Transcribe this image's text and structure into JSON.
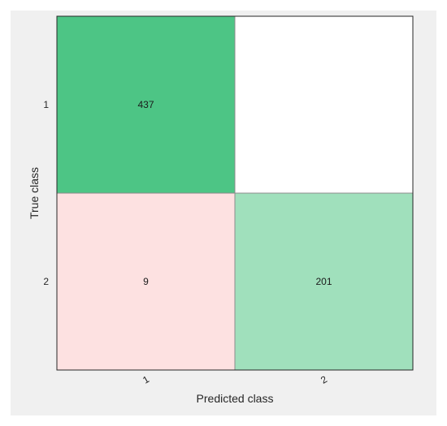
{
  "chart_data": {
    "type": "heatmap",
    "subtype": "confusion-matrix",
    "xlabel": "Predicted class",
    "ylabel": "True class",
    "x_categories": [
      "1",
      "2"
    ],
    "y_categories": [
      "1",
      "2"
    ],
    "cells": [
      {
        "row": "1",
        "col": "1",
        "value": 437,
        "label": "437",
        "color": "#4dc585"
      },
      {
        "row": "1",
        "col": "2",
        "value": 0,
        "label": "",
        "color": "#ffffff"
      },
      {
        "row": "2",
        "col": "1",
        "value": 9,
        "label": "9",
        "color": "#fde1e1"
      },
      {
        "row": "2",
        "col": "2",
        "value": 201,
        "label": "201",
        "color": "#a0e0bc"
      }
    ],
    "grid": true,
    "colors": {
      "correct_high": "#4dc585",
      "correct_low": "#a0e0bc",
      "incorrect": "#fde1e1",
      "empty": "#ffffff",
      "figure_background": "#f0f0f0"
    }
  }
}
